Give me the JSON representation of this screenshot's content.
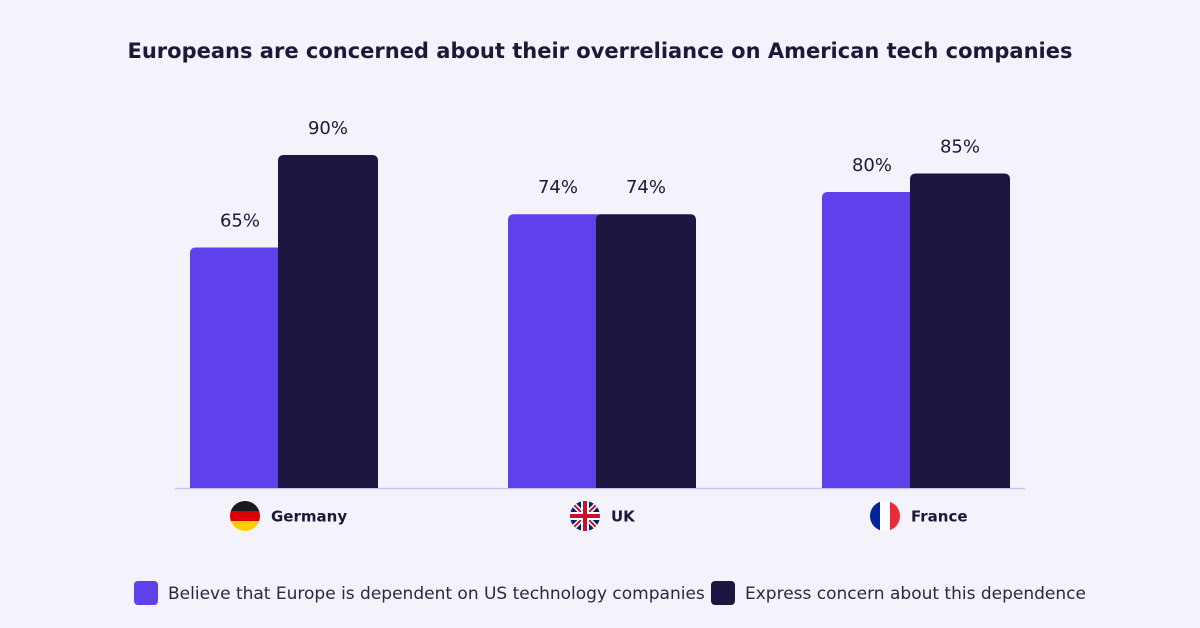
{
  "chart_data": {
    "type": "bar",
    "title": "Europeans are concerned about their overreliance on American tech companies",
    "categories": [
      "Germany",
      "UK",
      "France"
    ],
    "series": [
      {
        "name": "Believe that Europe is dependent on US technology companies",
        "color": "#5f40ea",
        "values": [
          65,
          74,
          80
        ],
        "value_labels": [
          "65%",
          "74%",
          "80%"
        ]
      },
      {
        "name": "Express concern about this dependence",
        "color": "#1c1640",
        "values": [
          90,
          74,
          85
        ],
        "value_labels": [
          "90%",
          "74%",
          "85%"
        ]
      }
    ]
  }
}
